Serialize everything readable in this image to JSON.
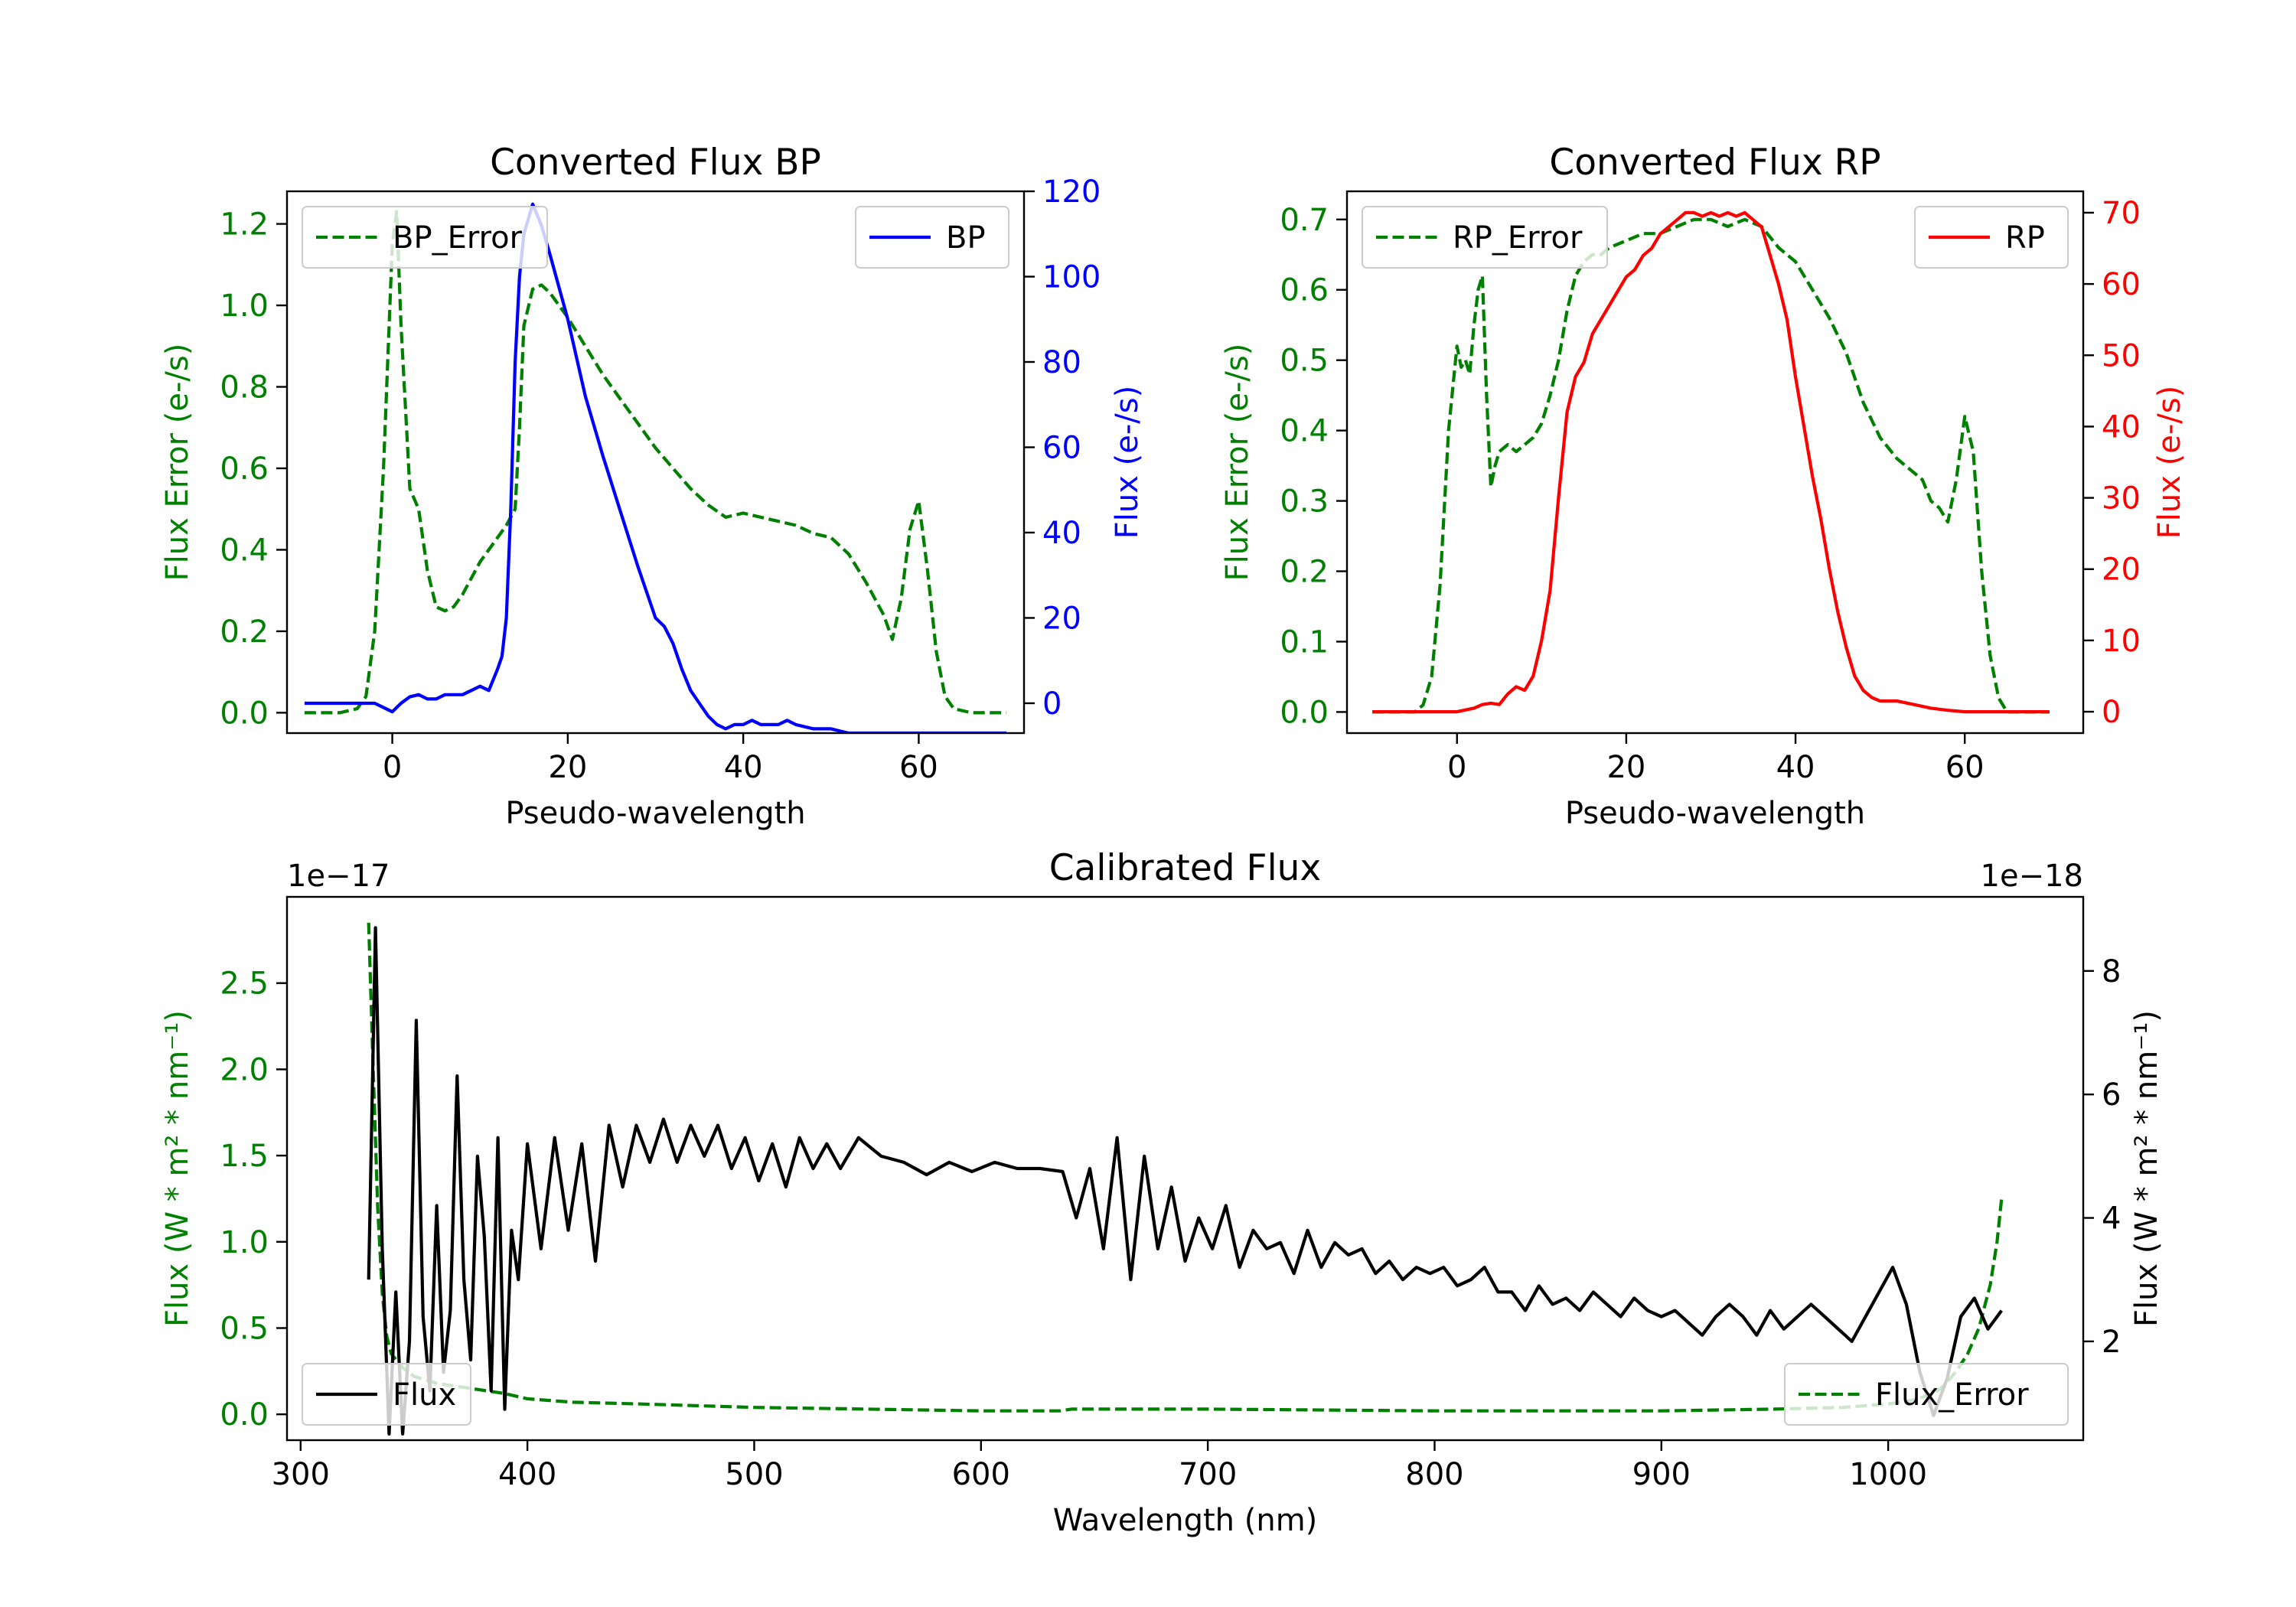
{
  "chart_data": [
    {
      "id": "bp",
      "type": "line",
      "title": "Converted Flux BP",
      "xlabel": "Pseudo-wavelength",
      "ylabel_left": "Flux Error (e-/s)",
      "ylabel_right": "Flux (e-/s)",
      "left_color": "#008000",
      "right_color": "#0000ff",
      "xlim": [
        -12,
        72
      ],
      "ylim_left": [
        -0.05,
        1.28
      ],
      "ylim_right": [
        -7,
        120
      ],
      "xticks": [
        0,
        20,
        40,
        60
      ],
      "xtick_labels": [
        "0",
        "20",
        "40",
        "60"
      ],
      "yticks_left": [
        0.0,
        0.2,
        0.4,
        0.6,
        0.8,
        1.0,
        1.2
      ],
      "ytick_labels_left": [
        "0.0",
        "0.2",
        "0.4",
        "0.6",
        "0.8",
        "1.0",
        "1.2"
      ],
      "yticks_right": [
        0,
        20,
        40,
        60,
        80,
        100,
        120
      ],
      "ytick_labels_right": [
        "0",
        "20",
        "40",
        "60",
        "80",
        "100",
        "120"
      ],
      "legend_left": {
        "label": "BP_Error",
        "position": "upper-left"
      },
      "legend_right": {
        "label": "BP",
        "position": "upper-right"
      },
      "series": [
        {
          "name": "BP_Error",
          "axis": "left",
          "style": "dashed",
          "x": [
            -10,
            -6,
            -4,
            -3,
            -2,
            -1,
            0,
            0.5,
            1,
            2,
            3,
            4,
            5,
            6,
            7,
            8,
            10,
            12,
            13,
            14,
            14.5,
            15,
            16,
            17,
            18,
            20,
            22,
            24,
            26,
            28,
            30,
            32,
            34,
            36,
            38,
            40,
            42,
            44,
            46,
            48,
            50,
            52,
            54,
            56,
            57,
            58,
            59,
            60,
            61,
            62,
            63,
            64,
            66,
            70
          ],
          "values": [
            0.0,
            0.0,
            0.01,
            0.04,
            0.2,
            0.6,
            1.15,
            1.23,
            0.95,
            0.55,
            0.5,
            0.35,
            0.26,
            0.25,
            0.26,
            0.29,
            0.37,
            0.43,
            0.46,
            0.5,
            0.7,
            0.95,
            1.04,
            1.05,
            1.03,
            0.97,
            0.9,
            0.83,
            0.77,
            0.71,
            0.65,
            0.6,
            0.55,
            0.51,
            0.48,
            0.49,
            0.48,
            0.47,
            0.46,
            0.44,
            0.43,
            0.39,
            0.32,
            0.24,
            0.18,
            0.28,
            0.45,
            0.52,
            0.35,
            0.15,
            0.04,
            0.01,
            0.0,
            0.0
          ]
        },
        {
          "name": "BP",
          "axis": "right",
          "style": "solid",
          "x": [
            -10,
            -4,
            -2,
            0,
            1,
            2,
            3,
            4,
            5,
            6,
            7,
            8,
            9,
            10,
            11,
            12,
            12.5,
            13,
            13.5,
            14,
            14.5,
            15,
            16,
            17,
            18,
            20,
            22,
            24,
            26,
            28,
            30,
            31,
            32,
            33,
            34,
            35,
            36,
            37,
            38,
            39,
            40,
            41,
            42,
            43,
            44,
            45,
            46,
            48,
            50,
            52,
            54,
            56,
            58,
            60,
            62,
            64,
            66,
            70
          ],
          "values": [
            0,
            0,
            0,
            -2,
            0,
            1.5,
            2,
            1,
            1,
            2,
            2,
            2,
            3,
            4,
            3,
            8,
            11,
            20,
            45,
            80,
            100,
            110,
            117,
            112,
            105,
            90,
            72,
            58,
            45,
            32,
            20,
            18,
            14,
            8,
            3,
            0,
            -3,
            -5,
            -6,
            -5,
            -5,
            -4,
            -5,
            -5,
            -5,
            -4,
            -5,
            -6,
            -6,
            -7,
            -7,
            -7,
            -7,
            -7,
            -7,
            -7,
            -7,
            -7
          ]
        }
      ]
    },
    {
      "id": "rp",
      "type": "line",
      "title": "Converted Flux RP",
      "xlabel": "Pseudo-wavelength",
      "ylabel_left": "Flux Error (e-/s)",
      "ylabel_right": "Flux (e-/s)",
      "left_color": "#008000",
      "right_color": "#ff0000",
      "xlim": [
        -13,
        74
      ],
      "ylim_left": [
        -0.03,
        0.74
      ],
      "ylim_right": [
        -3,
        73
      ],
      "xticks": [
        0,
        20,
        40,
        60
      ],
      "xtick_labels": [
        "0",
        "20",
        "40",
        "60"
      ],
      "yticks_left": [
        0.0,
        0.1,
        0.2,
        0.3,
        0.4,
        0.5,
        0.6,
        0.7
      ],
      "ytick_labels_left": [
        "0.0",
        "0.1",
        "0.2",
        "0.3",
        "0.4",
        "0.5",
        "0.6",
        "0.7"
      ],
      "yticks_right": [
        0,
        10,
        20,
        30,
        40,
        50,
        60,
        70
      ],
      "ytick_labels_right": [
        "0",
        "10",
        "20",
        "30",
        "40",
        "50",
        "60",
        "70"
      ],
      "legend_left": {
        "label": "RP_Error",
        "position": "upper-left"
      },
      "legend_right": {
        "label": "RP",
        "position": "upper-right"
      },
      "series": [
        {
          "name": "RP_Error",
          "axis": "left",
          "style": "dashed",
          "x": [
            -10,
            -5,
            -4,
            -3,
            -2,
            -1,
            0,
            0.5,
            1,
            1.5,
            2,
            2.5,
            3,
            3.5,
            4,
            4.5,
            5,
            6,
            7,
            8,
            9,
            10,
            11,
            12,
            13,
            14,
            15,
            16,
            17,
            18,
            20,
            22,
            24,
            26,
            28,
            30,
            32,
            34,
            36,
            38,
            40,
            42,
            44,
            46,
            48,
            50,
            52,
            54,
            55,
            56,
            57,
            58,
            59,
            60,
            61,
            62,
            63,
            64,
            65,
            70
          ],
          "values": [
            0.0,
            0.0,
            0.01,
            0.05,
            0.18,
            0.4,
            0.52,
            0.49,
            0.5,
            0.48,
            0.55,
            0.6,
            0.62,
            0.45,
            0.32,
            0.35,
            0.37,
            0.38,
            0.37,
            0.38,
            0.39,
            0.41,
            0.45,
            0.5,
            0.57,
            0.62,
            0.64,
            0.65,
            0.65,
            0.66,
            0.67,
            0.68,
            0.68,
            0.69,
            0.7,
            0.7,
            0.69,
            0.7,
            0.69,
            0.66,
            0.64,
            0.6,
            0.56,
            0.51,
            0.44,
            0.39,
            0.36,
            0.34,
            0.33,
            0.3,
            0.29,
            0.27,
            0.33,
            0.42,
            0.37,
            0.2,
            0.08,
            0.02,
            0.0,
            0.0
          ]
        },
        {
          "name": "RP",
          "axis": "right",
          "style": "solid",
          "x": [
            -10,
            -2,
            0,
            2,
            3,
            4,
            5,
            6,
            7,
            8,
            9,
            10,
            11,
            12,
            13,
            14,
            15,
            16,
            17,
            18,
            19,
            20,
            21,
            22,
            23,
            24,
            25,
            26,
            27,
            28,
            29,
            30,
            31,
            32,
            33,
            34,
            35,
            36,
            37,
            38,
            39,
            40,
            41,
            42,
            43,
            44,
            45,
            46,
            47,
            48,
            49,
            50,
            52,
            54,
            56,
            58,
            60,
            62,
            65,
            70
          ],
          "values": [
            0,
            0,
            0,
            0.5,
            1.0,
            1.2,
            1.0,
            2.5,
            3.5,
            3.0,
            5.0,
            10,
            17,
            30,
            42,
            47,
            49,
            53,
            55,
            57,
            59,
            61,
            62,
            64,
            65,
            67,
            68,
            69,
            70,
            70,
            69.5,
            70,
            69.5,
            70,
            69.5,
            70,
            69,
            68,
            64,
            60,
            55,
            47,
            40,
            33,
            27,
            20,
            14,
            9,
            5,
            3,
            2,
            1.5,
            1.5,
            1.0,
            0.5,
            0.2,
            0,
            0,
            0,
            0
          ]
        }
      ]
    },
    {
      "id": "cal",
      "type": "line",
      "title": "Calibrated Flux",
      "xlabel": "Wavelength (nm)",
      "ylabel_left": "Flux (W * m² * nm⁻¹)",
      "ylabel_right": "Flux (W * m² * nm⁻¹)",
      "left_color": "#008000",
      "right_color": "#000000",
      "offset_left": "1e−17",
      "offset_right": "1e−18",
      "xlim": [
        294,
        1086
      ],
      "ylim_left": [
        -0.15,
        3.0
      ],
      "ylim_right": [
        0.4,
        9.2
      ],
      "xticks": [
        300,
        400,
        500,
        600,
        700,
        800,
        900,
        1000
      ],
      "xtick_labels": [
        "300",
        "400",
        "500",
        "600",
        "700",
        "800",
        "900",
        "1000"
      ],
      "yticks_left": [
        0.0,
        0.5,
        1.0,
        1.5,
        2.0,
        2.5
      ],
      "ytick_labels_left": [
        "0.0",
        "0.5",
        "1.0",
        "1.5",
        "2.0",
        "2.5"
      ],
      "yticks_right": [
        2,
        4,
        6,
        8
      ],
      "ytick_labels_right": [
        "2",
        "4",
        "6",
        "8"
      ],
      "legend_left": {
        "label": "Flux",
        "position": "lower-left"
      },
      "legend_right": {
        "label": "Flux_Error",
        "position": "lower-right"
      },
      "series": [
        {
          "name": "Flux_Error",
          "axis": "left",
          "style": "dashed",
          "x": [
            330,
            332,
            334,
            336,
            338,
            340,
            345,
            350,
            360,
            370,
            380,
            390,
            400,
            420,
            450,
            500,
            550,
            600,
            635,
            640,
            700,
            800,
            900,
            950,
            980,
            1000,
            1010,
            1020,
            1025,
            1030,
            1035,
            1040,
            1045,
            1048,
            1050
          ],
          "values": [
            2.85,
            2.0,
            1.2,
            0.7,
            0.45,
            0.35,
            0.27,
            0.22,
            0.18,
            0.16,
            0.14,
            0.12,
            0.09,
            0.07,
            0.06,
            0.04,
            0.03,
            0.02,
            0.02,
            0.03,
            0.03,
            0.02,
            0.02,
            0.03,
            0.04,
            0.06,
            0.08,
            0.12,
            0.17,
            0.25,
            0.35,
            0.5,
            0.75,
            1.0,
            1.25
          ]
        },
        {
          "name": "Flux",
          "axis": "right",
          "style": "solid",
          "x": [
            330,
            333,
            336,
            339,
            342,
            345,
            348,
            351,
            354,
            357,
            360,
            363,
            366,
            369,
            372,
            375,
            378,
            381,
            384,
            387,
            390,
            393,
            396,
            400,
            406,
            412,
            418,
            424,
            430,
            436,
            442,
            448,
            454,
            460,
            466,
            472,
            478,
            484,
            490,
            496,
            502,
            508,
            514,
            520,
            526,
            532,
            538,
            546,
            556,
            566,
            576,
            586,
            596,
            606,
            616,
            626,
            636,
            642,
            648,
            654,
            660,
            666,
            672,
            678,
            684,
            690,
            696,
            702,
            708,
            714,
            720,
            726,
            732,
            738,
            744,
            750,
            756,
            762,
            768,
            774,
            780,
            786,
            792,
            798,
            804,
            810,
            816,
            822,
            828,
            834,
            840,
            846,
            852,
            858,
            864,
            870,
            876,
            882,
            888,
            894,
            900,
            906,
            912,
            918,
            924,
            930,
            936,
            942,
            948,
            954,
            960,
            966,
            972,
            978,
            984,
            990,
            996,
            1002,
            1008,
            1014,
            1020,
            1026,
            1032,
            1038,
            1044,
            1050
          ],
          "values": [
            3.0,
            8.7,
            3.5,
            0.5,
            2.8,
            0.5,
            2.0,
            7.2,
            2.4,
            1.2,
            4.2,
            1.5,
            2.5,
            6.3,
            3.0,
            1.7,
            5.0,
            3.7,
            1.2,
            5.3,
            0.9,
            3.8,
            3.0,
            5.2,
            3.5,
            5.3,
            3.8,
            5.2,
            3.3,
            5.5,
            4.5,
            5.5,
            4.9,
            5.6,
            4.9,
            5.5,
            5.0,
            5.5,
            4.8,
            5.3,
            4.6,
            5.2,
            4.5,
            5.3,
            4.8,
            5.2,
            4.8,
            5.3,
            5.0,
            4.9,
            4.7,
            4.9,
            4.75,
            4.9,
            4.8,
            4.8,
            4.75,
            4.0,
            4.8,
            3.5,
            5.3,
            3.0,
            5.0,
            3.5,
            4.5,
            3.3,
            4.0,
            3.5,
            4.2,
            3.2,
            3.8,
            3.5,
            3.6,
            3.1,
            3.8,
            3.2,
            3.6,
            3.4,
            3.5,
            3.1,
            3.3,
            3.0,
            3.2,
            3.1,
            3.2,
            2.9,
            3.0,
            3.2,
            2.8,
            2.8,
            2.5,
            2.9,
            2.6,
            2.7,
            2.5,
            2.8,
            2.6,
            2.4,
            2.7,
            2.5,
            2.4,
            2.5,
            2.3,
            2.1,
            2.4,
            2.6,
            2.4,
            2.1,
            2.5,
            2.2,
            2.4,
            2.6,
            2.4,
            2.2,
            2.0,
            2.4,
            2.8,
            3.2,
            2.6,
            1.5,
            0.8,
            1.4,
            2.4,
            2.7,
            2.2,
            2.5
          ]
        }
      ]
    }
  ]
}
